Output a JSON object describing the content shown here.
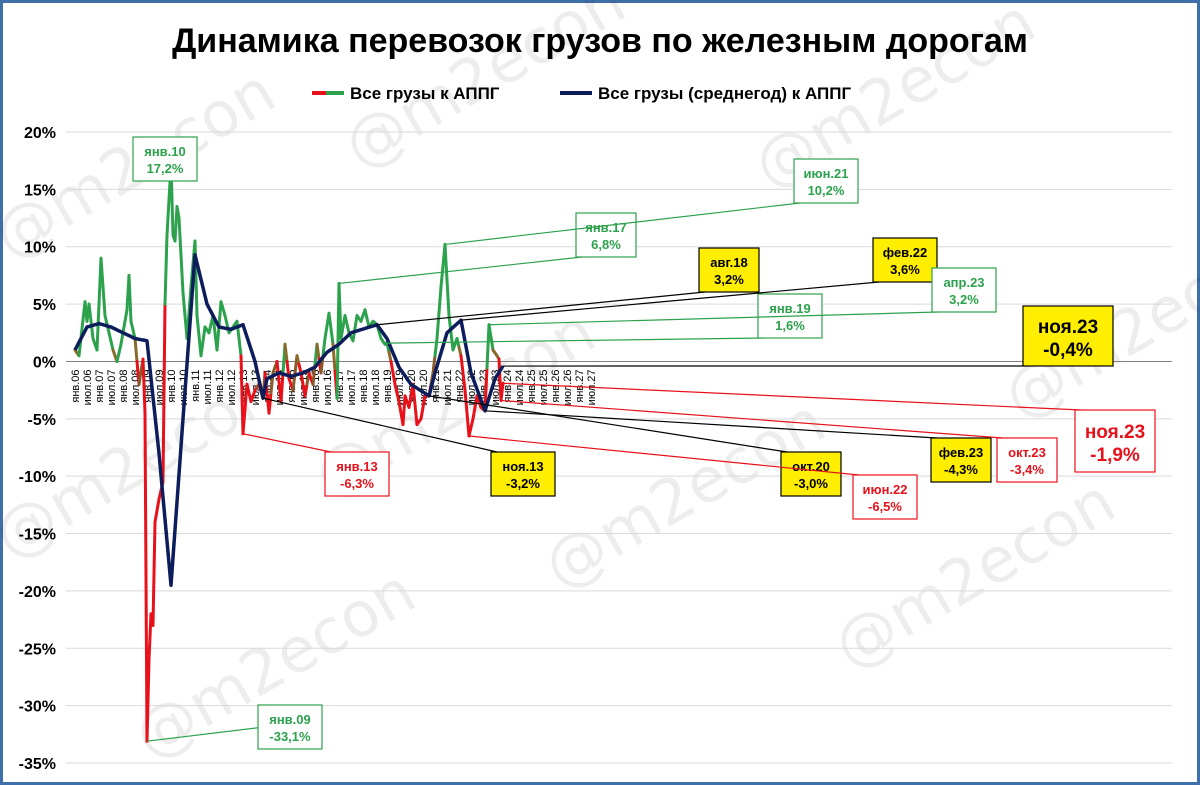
{
  "title": "Динамика перевозок грузов по железным дорогам",
  "watermark": "@m2econ",
  "colors": {
    "frame": "#3f6fa8",
    "series_monthly_up": "#2ca24d",
    "series_monthly_down": "#e8111a",
    "series_avg": "#0d1d5c",
    "callout_yellow": "#ffee00",
    "gridline": "#d9d9d9"
  },
  "chart_data": {
    "type": "line",
    "title": "Динамика перевозок грузов по железным дорогам",
    "ylim": [
      -35,
      20
    ],
    "y_ticks": [
      20,
      15,
      10,
      5,
      0,
      -5,
      -10,
      -15,
      -20,
      -25,
      -30,
      -35
    ],
    "y_tick_labels": [
      "20%",
      "15%",
      "10%",
      "5%",
      "0%",
      "-5%",
      "-10%",
      "-15%",
      "-20%",
      "-25%",
      "-30%",
      "-35%"
    ],
    "x_tick_labels": [
      "янв.06",
      "июл.06",
      "янв.07",
      "июл.07",
      "янв.08",
      "июл.08",
      "янв.09",
      "июл.09",
      "янв.10",
      "июл.10",
      "янв.11",
      "июл.11",
      "янв.12",
      "июл.12",
      "янв.13",
      "июл.13",
      "янв.14",
      "июл.14",
      "янв.15",
      "июл.15",
      "янв.16",
      "июл.16",
      "янв.17",
      "июл.17",
      "янв.18",
      "июл.18",
      "янв.19",
      "июл.19",
      "янв.20",
      "июл.20",
      "янв.21",
      "июл.21",
      "янв.22",
      "июл.22",
      "янв.23",
      "июл.23",
      "янв.24",
      "июл.24",
      "янв.25",
      "июл.25",
      "янв.26",
      "июл.26",
      "янв.27",
      "июл.27"
    ],
    "grid": true,
    "legend_position": "top",
    "series": [
      {
        "name": "Все грузы к АППГ",
        "keypoints": [
          [
            "янв.06",
            1.0
          ],
          [
            "мар.06",
            0.5
          ],
          [
            "июн.06",
            5.2
          ],
          [
            "июл.06",
            3.5
          ],
          [
            "авг.06",
            5.0
          ],
          [
            "окт.06",
            2.0
          ],
          [
            "дек.06",
            1.0
          ],
          [
            "фев.07",
            9.0
          ],
          [
            "апр.07",
            4.0
          ],
          [
            "июн.07",
            2.5
          ],
          [
            "авг.07",
            1.0
          ],
          [
            "окт.07",
            0.0
          ],
          [
            "дек.07",
            1.5
          ],
          [
            "мар.08",
            4.5
          ],
          [
            "апр.08",
            7.5
          ],
          [
            "май.08",
            3.5
          ],
          [
            "июл.08",
            2.0
          ],
          [
            "сен.08",
            -2.0
          ],
          [
            "ноя.08",
            0.2
          ],
          [
            "дек.08",
            -4.5
          ],
          [
            "янв.09",
            -33.1
          ],
          [
            "фев.09",
            -26.0
          ],
          [
            "мар.09",
            -22.0
          ],
          [
            "апр.09",
            -23.0
          ],
          [
            "май.09",
            -14.0
          ],
          [
            "июл.09",
            -12.0
          ],
          [
            "сен.09",
            -10.5
          ],
          [
            "окт.09",
            5.0
          ],
          [
            "ноя.09",
            11.0
          ],
          [
            "янв.10",
            17.2
          ],
          [
            "фев.10",
            11.0
          ],
          [
            "мар.10",
            10.5
          ],
          [
            "апр.10",
            13.5
          ],
          [
            "май.10",
            12.5
          ],
          [
            "июл.10",
            6.0
          ],
          [
            "авг.10",
            4.0
          ],
          [
            "сен.10",
            2.0
          ],
          [
            "ноя.10",
            6.5
          ],
          [
            "янв.11",
            10.5
          ],
          [
            "фев.11",
            4.0
          ],
          [
            "апр.11",
            0.5
          ],
          [
            "июн.11",
            3.0
          ],
          [
            "авг.11",
            2.5
          ],
          [
            "окт.11",
            4.0
          ],
          [
            "дек.11",
            1.0
          ],
          [
            "фев.12",
            5.2
          ],
          [
            "апр.12",
            4.0
          ],
          [
            "июн.12",
            2.5
          ],
          [
            "авг.12",
            3.0
          ],
          [
            "окт.12",
            3.5
          ],
          [
            "ноя.12",
            2.0
          ],
          [
            "дек.12",
            0.5
          ],
          [
            "янв.13",
            -6.3
          ],
          [
            "мар.13",
            -2.0
          ],
          [
            "май.13",
            -3.5
          ],
          [
            "июл.13",
            -2.5
          ],
          [
            "сен.13",
            -2.0
          ],
          [
            "ноя.13",
            -3.2
          ],
          [
            "дек.13",
            -1.0
          ],
          [
            "фев.14",
            -4.5
          ],
          [
            "апр.14",
            -1.0
          ],
          [
            "июн.14",
            0.0
          ],
          [
            "авг.14",
            -3.5
          ],
          [
            "окт.14",
            1.5
          ],
          [
            "дек.14",
            -1.5
          ],
          [
            "фев.15",
            -2.5
          ],
          [
            "апр.15",
            0.5
          ],
          [
            "июн.15",
            -1.0
          ],
          [
            "авг.15",
            -3.0
          ],
          [
            "окт.15",
            -1.0
          ],
          [
            "дек.15",
            -2.0
          ],
          [
            "фев.16",
            1.5
          ],
          [
            "апр.16",
            -1.0
          ],
          [
            "июн.16",
            2.0
          ],
          [
            "авг.16",
            4.2
          ],
          [
            "окт.16",
            1.5
          ],
          [
            "дек.16",
            -3.2
          ],
          [
            "янв.17",
            6.8
          ],
          [
            "фев.17",
            2.0
          ],
          [
            "апр.17",
            4.0
          ],
          [
            "июн.17",
            2.5
          ],
          [
            "авг.17",
            1.8
          ],
          [
            "окт.17",
            4.0
          ],
          [
            "дек.17",
            3.5
          ],
          [
            "фев.18",
            4.5
          ],
          [
            "апр.18",
            3.0
          ],
          [
            "июн.18",
            3.5
          ],
          [
            "авг.18",
            3.2
          ],
          [
            "окт.18",
            2.0
          ],
          [
            "дек.18",
            1.5
          ],
          [
            "янв.19",
            1.6
          ],
          [
            "мар.19",
            0.0
          ],
          [
            "май.19",
            -2.0
          ],
          [
            "июл.19",
            -3.5
          ],
          [
            "сен.19",
            -5.5
          ],
          [
            "окт.19",
            -3.0
          ],
          [
            "дек.19",
            -4.0
          ],
          [
            "фев.20",
            -2.0
          ],
          [
            "апр.20",
            -5.5
          ],
          [
            "июн.20",
            -5.0
          ],
          [
            "авг.20",
            -3.0
          ],
          [
            "окт.20",
            -3.0
          ],
          [
            "дек.20",
            -1.0
          ],
          [
            "фев.21",
            2.0
          ],
          [
            "апр.21",
            6.5
          ],
          [
            "июн.21",
            10.2
          ],
          [
            "авг.21",
            4.0
          ],
          [
            "окт.21",
            1.0
          ],
          [
            "дек.21",
            2.0
          ],
          [
            "фев.22",
            0.5
          ],
          [
            "апр.22",
            -2.5
          ],
          [
            "июн.22",
            -6.5
          ],
          [
            "авг.22",
            -5.0
          ],
          [
            "окт.22",
            -3.0
          ],
          [
            "дек.22",
            -4.0
          ],
          [
            "фев.23",
            -4.3
          ],
          [
            "апр.23",
            3.2
          ],
          [
            "июн.23",
            1.0
          ],
          [
            "авг.23",
            0.5
          ],
          [
            "сен.23",
            0.2
          ],
          [
            "окт.23",
            -3.4
          ],
          [
            "ноя.23",
            -1.9
          ]
        ]
      },
      {
        "name": "Все грузы (среднегод) к АППГ",
        "keypoints": [
          [
            "янв.06",
            1.0
          ],
          [
            "июл.06",
            3.0
          ],
          [
            "янв.07",
            3.3
          ],
          [
            "июл.07",
            3.0
          ],
          [
            "янв.08",
            2.5
          ],
          [
            "июл.08",
            2.0
          ],
          [
            "янв.09",
            1.8
          ],
          [
            "июл.09",
            -8.0
          ],
          [
            "янв.10",
            -19.5
          ],
          [
            "июл.10",
            -5.0
          ],
          [
            "янв.11",
            9.3
          ],
          [
            "июл.11",
            5.0
          ],
          [
            "янв.12",
            3.0
          ],
          [
            "июл.12",
            2.8
          ],
          [
            "янв.13",
            3.2
          ],
          [
            "июл.13",
            0.0
          ],
          [
            "ноя.13",
            -3.2
          ],
          [
            "янв.14",
            -1.5
          ],
          [
            "июл.14",
            -1.0
          ],
          [
            "янв.15",
            -1.3
          ],
          [
            "июл.15",
            -1.0
          ],
          [
            "янв.16",
            -0.5
          ],
          [
            "июл.16",
            0.8
          ],
          [
            "янв.17",
            1.5
          ],
          [
            "июл.17",
            2.5
          ],
          [
            "авг.18",
            3.2
          ],
          [
            "янв.19",
            2.0
          ],
          [
            "июл.19",
            -0.5
          ],
          [
            "янв.20",
            -2.0
          ],
          [
            "окт.20",
            -3.0
          ],
          [
            "янв.21",
            -1.0
          ],
          [
            "июл.21",
            2.5
          ],
          [
            "фев.22",
            3.6
          ],
          [
            "июл.22",
            -1.0
          ],
          [
            "фев.23",
            -4.3
          ],
          [
            "июл.23",
            -1.5
          ],
          [
            "ноя.23",
            -0.4
          ]
        ]
      }
    ],
    "annotations": [
      {
        "date": "янв.10",
        "value_label": "17,2%",
        "style": "green"
      },
      {
        "date": "янв.09",
        "value_label": "-33,1%",
        "style": "green"
      },
      {
        "date": "янв.13",
        "value_label": "-6,3%",
        "style": "red"
      },
      {
        "date": "ноя.13",
        "value_label": "-3,2%",
        "style": "yellow"
      },
      {
        "date": "янв.17",
        "value_label": "6,8%",
        "style": "green"
      },
      {
        "date": "авг.18",
        "value_label": "3,2%",
        "style": "yellow"
      },
      {
        "date": "янв.19",
        "value_label": "1,6%",
        "style": "green"
      },
      {
        "date": "окт.20",
        "value_label": "-3,0%",
        "style": "yellow"
      },
      {
        "date": "июн.21",
        "value_label": "10,2%",
        "style": "green"
      },
      {
        "date": "фев.22",
        "value_label": "3,6%",
        "style": "yellow"
      },
      {
        "date": "июн.22",
        "value_label": "-6,5%",
        "style": "red"
      },
      {
        "date": "апр.23",
        "value_label": "3,2%",
        "style": "green"
      },
      {
        "date": "фев.23",
        "value_label": "-4,3%",
        "style": "yellow"
      },
      {
        "date": "окт.23",
        "value_label": "-3,4%",
        "style": "red"
      },
      {
        "date": "ноя.23",
        "value_label": "-0,4%",
        "style": "yellow-big"
      },
      {
        "date": "ноя.23",
        "value_label": "-1,9%",
        "style": "red-big"
      }
    ]
  }
}
